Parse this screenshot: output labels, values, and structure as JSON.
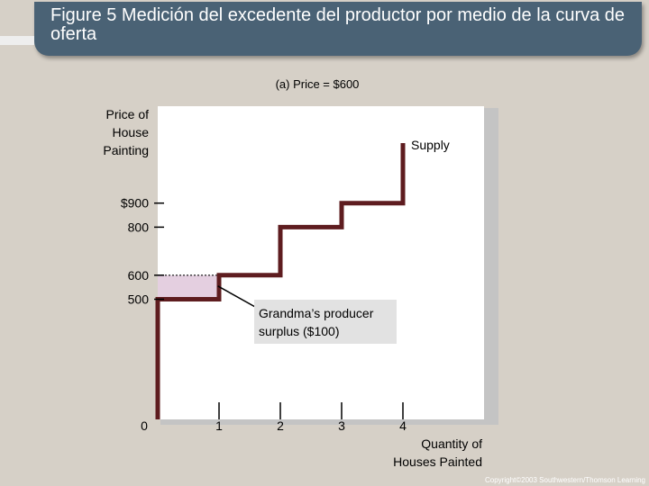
{
  "header": {
    "title": "Figure 5 Medición del excedente del productor por medio de la curva de oferta"
  },
  "chart_data": {
    "type": "line",
    "panel_title": "(a) Price = $600",
    "ylabel": [
      "Price of",
      "House",
      "Painting"
    ],
    "xlabel": [
      "Quantity of",
      "Houses Painted"
    ],
    "y_ticks": [
      {
        "value": 900,
        "label": "$900"
      },
      {
        "value": 800,
        "label": "800"
      },
      {
        "value": 600,
        "label": "600"
      },
      {
        "value": 500,
        "label": "500"
      }
    ],
    "x_ticks": [
      {
        "value": 0,
        "label": "0"
      },
      {
        "value": 1,
        "label": "1"
      },
      {
        "value": 2,
        "label": "2"
      },
      {
        "value": 3,
        "label": "3"
      },
      {
        "value": 4,
        "label": "4"
      }
    ],
    "series": [
      {
        "name": "Supply",
        "x": [
          0,
          0,
          1,
          1,
          2,
          2,
          3,
          3,
          4,
          4
        ],
        "y": [
          0,
          500,
          500,
          600,
          600,
          800,
          800,
          900,
          900,
          1150
        ]
      }
    ],
    "price_line": 600,
    "surplus_region": {
      "x": [
        0,
        1
      ],
      "y": [
        500,
        600
      ]
    },
    "annotation": [
      "Grandma’s producer",
      "surplus ($100)"
    ],
    "xlim": [
      0,
      5.5
    ],
    "ylim": [
      0,
      1300
    ],
    "colors": {
      "supply": "#5e1c1f",
      "surplus": "#e4cfe0",
      "plot_bg": "#ffffff",
      "annotation_bg": "#e2e2e2"
    }
  },
  "footer": {
    "copyright": "Copyright©2003 Southwestern/Thomson Learning"
  }
}
